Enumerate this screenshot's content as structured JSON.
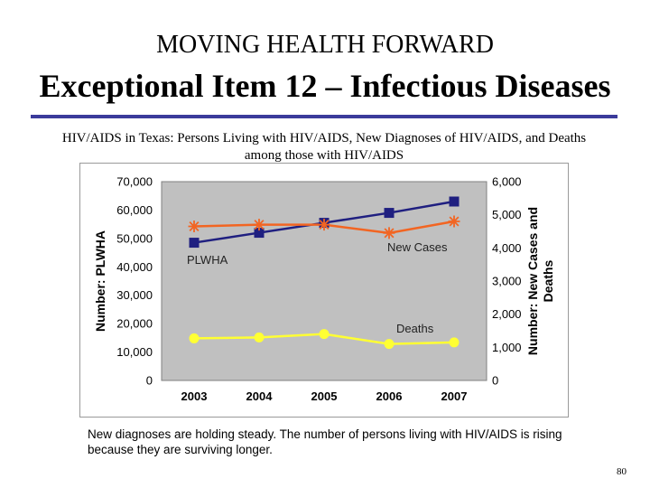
{
  "slide": {
    "kicker": "MOVING HEALTH FORWARD",
    "title": "Exceptional Item 12 – Infectious Diseases",
    "subtitle": "HIV/AIDS in Texas: Persons Living with HIV/AIDS, New Diagnoses of HIV/AIDS, and Deaths among those with HIV/AIDS",
    "caption": "New diagnoses are holding steady.  The number of persons living with HIV/AIDS is rising because they are surviving longer.",
    "page_number": "80"
  },
  "chart_data": {
    "type": "line",
    "title": "",
    "categories": [
      "2003",
      "2004",
      "2005",
      "2006",
      "2007"
    ],
    "xlabel": "",
    "ylabel_left": "Number: PLWHA",
    "ylabel_right": "Number: New Cases and Deaths",
    "ylim_left": [
      0,
      70000
    ],
    "ylim_right": [
      0,
      6000
    ],
    "yticks_left": [
      "0",
      "10,000",
      "20,000",
      "30,000",
      "40,000",
      "50,000",
      "60,000",
      "70,000"
    ],
    "yticks_right": [
      "0",
      "1,000",
      "2,000",
      "3,000",
      "4,000",
      "5,000",
      "6,000"
    ],
    "plot_background": "#c0c0c0",
    "grid": false,
    "series": [
      {
        "name": "PLWHA",
        "axis": "left",
        "color": "#1f1f80",
        "marker": "square",
        "values": [
          48500,
          52000,
          55500,
          59000,
          63000
        ]
      },
      {
        "name": "New Cases",
        "axis": "right",
        "color": "#f26522",
        "marker": "star",
        "values": [
          4650,
          4700,
          4700,
          4450,
          4800
        ]
      },
      {
        "name": "Deaths",
        "axis": "right",
        "color": "#ffff33",
        "marker": "circle",
        "values": [
          1270,
          1300,
          1400,
          1100,
          1150
        ]
      }
    ]
  }
}
